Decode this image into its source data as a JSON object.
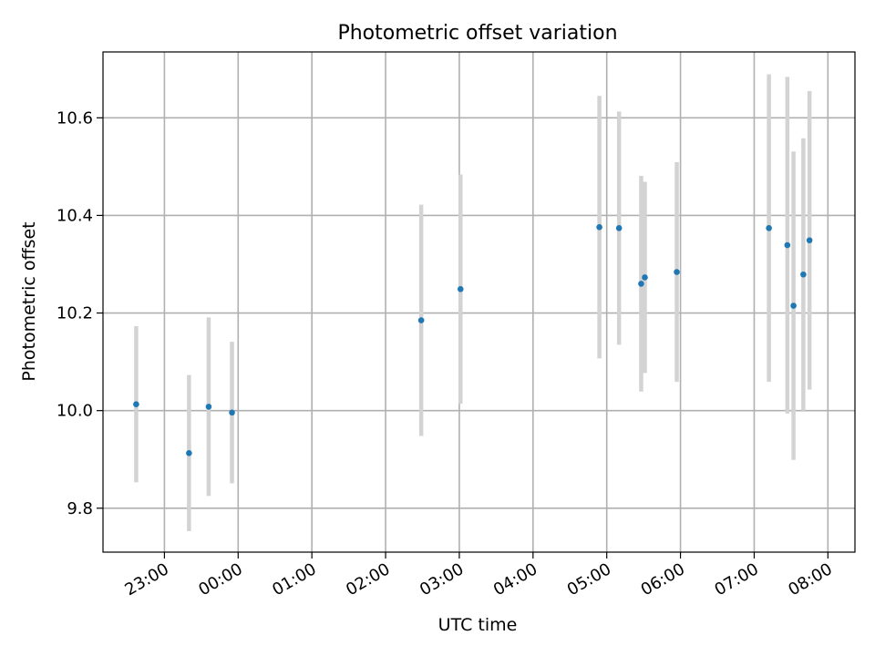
{
  "chart_data": {
    "type": "scatter",
    "title": "Photometric offset variation",
    "xlabel": "UTC time",
    "ylabel": "Photometric offset",
    "x_ticks": [
      "23:00",
      "00:00",
      "01:00",
      "02:00",
      "03:00",
      "04:00",
      "05:00",
      "06:00",
      "07:00",
      "08:00"
    ],
    "y_ticks": [
      "9.8",
      "10.0",
      "10.2",
      "10.4",
      "10.6"
    ],
    "xlim": [
      "22:10",
      "08:22"
    ],
    "ylim": [
      9.71,
      10.735
    ],
    "grid": true,
    "legend": "none",
    "series": [
      {
        "marker_color": "#1f77b4",
        "errorbar_color": "#d3d3d3",
        "points": [
          {
            "x": "22:37",
            "y": 10.013,
            "yerr": 0.16
          },
          {
            "x": "23:20",
            "y": 9.913,
            "yerr": 0.16
          },
          {
            "x": "23:36",
            "y": 10.008,
            "yerr": 0.183
          },
          {
            "x": "23:55",
            "y": 9.996,
            "yerr": 0.145
          },
          {
            "x": "02:29",
            "y": 10.185,
            "yerr": 0.237
          },
          {
            "x": "03:01",
            "y": 10.249,
            "yerr": 0.235
          },
          {
            "x": "04:54",
            "y": 10.376,
            "yerr": 0.269
          },
          {
            "x": "05:10",
            "y": 10.374,
            "yerr": 0.239
          },
          {
            "x": "05:28",
            "y": 10.26,
            "yerr": 0.221
          },
          {
            "x": "05:31",
            "y": 10.273,
            "yerr": 0.196
          },
          {
            "x": "05:57",
            "y": 10.284,
            "yerr": 0.225
          },
          {
            "x": "07:12",
            "y": 10.374,
            "yerr": 0.315
          },
          {
            "x": "07:27",
            "y": 10.339,
            "yerr": 0.345
          },
          {
            "x": "07:32",
            "y": 10.215,
            "yerr": 0.316
          },
          {
            "x": "07:40",
            "y": 10.279,
            "yerr": 0.279
          },
          {
            "x": "07:45",
            "y": 10.349,
            "yerr": 0.306
          }
        ]
      }
    ]
  }
}
